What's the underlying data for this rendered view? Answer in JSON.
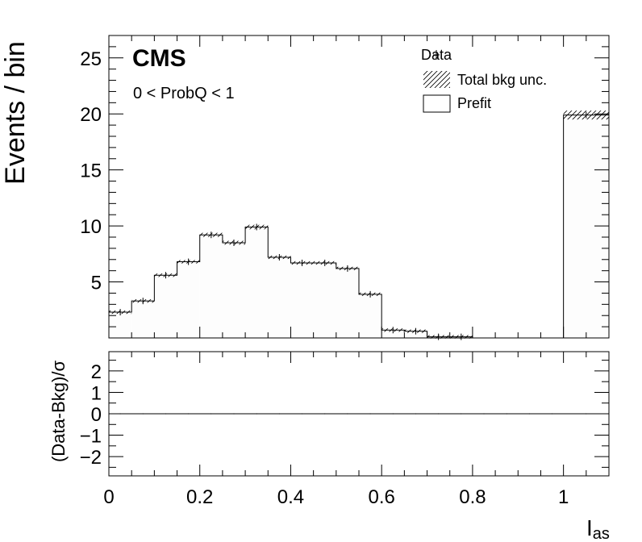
{
  "chart_data": {
    "type": "bar",
    "experiment_label": "CMS",
    "selection_label": "0 < ProbQ < 1",
    "ylabel": "Events / bin",
    "xlabel_main": "I",
    "xlabel_sub": "as",
    "ratio_ylabel": "(Data-Bkg)/σ",
    "xlim": [
      0,
      1.1
    ],
    "ylim": [
      0,
      27
    ],
    "ratio_ylim": [
      -2.9,
      2.9
    ],
    "x_ticks": [
      "0",
      "0.2",
      "0.4",
      "0.6",
      "0.8",
      "1"
    ],
    "x_tick_values": [
      0,
      0.2,
      0.4,
      0.6,
      0.8,
      1.0
    ],
    "y_ticks": [
      "5",
      "10",
      "15",
      "20",
      "25"
    ],
    "y_tick_values": [
      5,
      10,
      15,
      20,
      25
    ],
    "ratio_ticks": [
      "2",
      "1",
      "0",
      "−1",
      "−2"
    ],
    "ratio_tick_values": [
      2,
      1,
      0,
      -1,
      -2
    ],
    "bin_edges": [
      0,
      0.05,
      0.1,
      0.15,
      0.2,
      0.25,
      0.3,
      0.35,
      0.4,
      0.45,
      0.5,
      0.55,
      0.6,
      0.65,
      0.7,
      0.75,
      0.8,
      0.85,
      0.9,
      0.95,
      1.0,
      1.1
    ],
    "series": [
      {
        "name": "Prefit",
        "values": [
          2.3,
          3.3,
          5.6,
          6.8,
          9.2,
          8.5,
          9.9,
          7.2,
          6.7,
          6.7,
          6.2,
          3.9,
          0.7,
          0.6,
          0.1,
          0.1,
          0,
          0,
          0,
          0,
          19.9
        ]
      }
    ],
    "ratio_values": [
      0,
      0,
      0,
      0,
      0,
      0,
      0,
      0,
      0,
      0,
      0,
      0,
      0,
      0,
      0,
      0,
      0,
      0,
      0,
      0,
      0
    ],
    "legend": {
      "placement": "top-right",
      "entries": [
        "Data",
        "Total bkg unc.",
        "Prefit"
      ]
    },
    "grid": false
  }
}
